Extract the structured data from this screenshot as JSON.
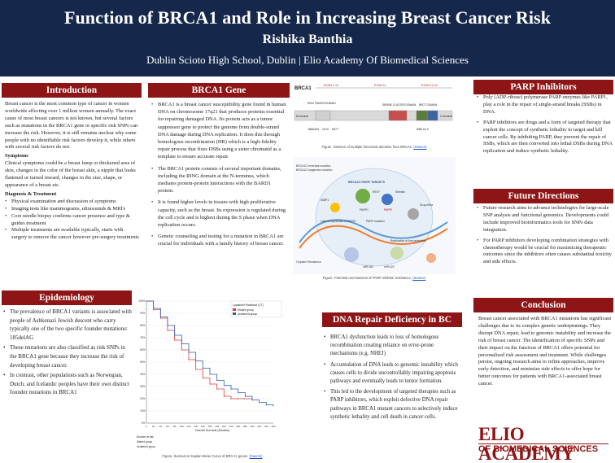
{
  "header": {
    "title": "Function of BRCA1 and Role in Increasing Breast Cancer Risk",
    "author": "Rishika Banthia",
    "affiliation": "Dublin Scioto High School, Dublin  |  Elio Academy Of Biomedical Sciences"
  },
  "colors": {
    "header_bg": "#15284c",
    "section_bg": "#8e1515",
    "text": "#222222"
  },
  "introduction": {
    "heading": "Introduction",
    "body": "Breast cancer is the most common type of cancer in women worldwide affecting over 1 million women annually. The exact cause of most breast cancers is not known, but several factors such as mutations in the BRCA1 gene or specific risk SNPs can increase the risk. However, it is still remains unclear why some people with no identifiable risk factors develop it, while others with several risk factors do not.",
    "symptoms_heading": "Symptoms",
    "symptoms": "Clinical symptoms could be a breast lump or thickened area of skin, changes in the color of the breast skin, a nipple that looks flattened or turned inward, changes in the size, shape, or appearance of a breast etc.",
    "diagnosis_heading": "Diagnosis & Treatment",
    "diagnosis": [
      "Physical examination and discussion of symptoms",
      "Imaging tests like mammograms, ultrasounds & MRI's",
      "Core needle biopsy confirms cancer presence and type & guides treatment",
      "Multiple treatments are available typically, starts with surgery to remove the cancer however pre-surgery treatments"
    ]
  },
  "brca1_gene": {
    "heading": "BRCA1 Gene",
    "bullets": [
      "BRCA1 is a breast cancer susceptibility gene found in human DNA on chromosome 17q21 that produces proteins essential for repairing damaged DNA. Its protein acts as a tumor suppressor gene to protect the genome from double-strand DNA damage during DNA replication. It does this through homologous recombination (HR) which is a high-fidelity repair process that fixes DSBs using a sister chromatid as a template to ensure accurate repair.",
      "The BRCA1 protein consists of several important domains, including the RING domain at the N-terminus, which mediates protein-protein interactions with the BARD1 protein.",
      "It is found higher levels in tissues with high proliferative capacity, such as the breast. Its expression is regulated during the cell cycle and is highest during the S phase when DNA replication occurs.",
      "Genetic counseling and testing for a mutation in BRCA1 are crucial for individuals with a family history of breast cancer."
    ]
  },
  "figure_domains": {
    "title": "BRCA1",
    "exons": [
      "EXON 1-10",
      "EXON 11",
      "EXON 12-24"
    ],
    "domains": [
      "RING FINGER DOMAIN",
      "SERINE CLUSTER DOMAIN",
      "BRCT DOMAIN"
    ],
    "terminal_left": "N-terminal",
    "terminal_right": "C-terminal",
    "markers": [
      "185delAG",
      "C61G",
      "D67Y",
      "5382 ins C"
    ],
    "caption": "Figure. Deletion of multiple functional domains from BRCA1.",
    "caption_link": "(Source)"
  },
  "figure_parp": {
    "caption": "Figure. Potential mechanisms of PARP inhibitor resistance.",
    "caption_link": "(Source)",
    "labels": [
      "BRCA1/2 revertant mutation",
      "BRCA1/2 epigenetic mutation",
      "BRCA1/2 PARPi TARGETS",
      "53BP1",
      "REV7",
      "Shieldin",
      "PARP1",
      "PARPi",
      "Loss of expression of PARP1",
      "PARP mutation",
      "Drug efflux",
      "Restoration of fork protection",
      "Cisplatin Resistance",
      "miR-182",
      "miR-622"
    ]
  },
  "epidemiology": {
    "heading": "Epidemiology",
    "bullets": [
      "The prevalence of BRCA1 variants is associated with people of Ashkenazi Jewish descent who carry typically one of the two specific founder mutations: 185delAG",
      "These mutations are also classified as risk SNPs in the BRCA1 gene because they increase the risk of developing breast cancer.",
      "In contrast, other populations such as Norwegian, Dutch, and Icelandic peoples have their own distinct founder mutations in BRCA1"
    ]
  },
  "km_figure": {
    "caption": "Figure. Survival or Kaplan-Meier Curve of BRCA1 genes.",
    "caption_link": "(Source)",
    "legend_title": "Lapatinib+Paclitaxel (CT)",
    "legend": [
      "Mutant group",
      "Unaltered group"
    ],
    "xlabel": "Overall Survival (Months)",
    "row_labels": [
      "Number at risk",
      "Altered group",
      "Unaltered group"
    ]
  },
  "chart_data": {
    "type": "line",
    "xlabel": "Overall Survival (Months)",
    "ylim": [
      0,
      100
    ],
    "xlim": [
      0,
      360
    ],
    "y_ticks": [
      0,
      10,
      20,
      30,
      40,
      50,
      60,
      70,
      80,
      90,
      100
    ],
    "y_tick_labels": [
      "0%",
      "10%",
      "20%",
      "30%",
      "40%",
      "50%",
      "60%",
      "70%",
      "80%",
      "90%",
      "100%"
    ],
    "x_ticks": [
      0,
      20,
      40,
      60,
      80,
      100,
      120,
      140,
      160,
      180,
      200,
      220,
      240,
      260,
      280,
      300,
      320,
      340,
      360
    ],
    "series": [
      {
        "name": "Mutant group",
        "color": "#e03b3b",
        "x": [
          0,
          20,
          40,
          60,
          80,
          100,
          120,
          140,
          160,
          180,
          200,
          220,
          240,
          260,
          300
        ],
        "y": [
          100,
          93,
          86,
          76,
          68,
          60,
          52,
          44,
          37,
          32,
          28,
          22,
          20,
          20,
          20
        ]
      },
      {
        "name": "Unaltered group",
        "color": "#2d5fb3",
        "x": [
          0,
          20,
          40,
          60,
          80,
          100,
          120,
          140,
          160,
          180,
          200,
          220,
          240,
          260,
          280,
          300,
          320,
          340,
          360
        ],
        "y": [
          100,
          94,
          87,
          80,
          72,
          65,
          58,
          51,
          45,
          40,
          35,
          31,
          28,
          25,
          22,
          19,
          17,
          15,
          14
        ]
      }
    ]
  },
  "dna_repair": {
    "heading": "DNA Repair Deficiency in BC",
    "bullets": [
      "BRCA1 dysfunction leads to loss of homologous recombination creating reliance on error-prone mechanisms (e.g. NHEJ)",
      "Accumulation of DNA leads to genomic instability which causes cells to divide uncontrollably impairing apoptosis pathways and eventually leads to tumor formation.",
      "This led to the development of targeted therapies such as PARP inhibitors, which exploit defective DNA repair pathways in BRCA1 mutant cancers to selectively induce synthetic lethality and cell death in cancer cells."
    ]
  },
  "parp": {
    "heading": "PARP Inhibitors",
    "bullets": [
      "Poly (ADP-ribose) polymerase PARP enzymes like PARP1, play a role in the repair of single-strand breaks (SSBs) in DNA.",
      "PARP inhibitors are drugs and a form of targeted therapy that exploit the concept of synthetic lethality to target and kill cancer cells. By inhibiting PARP, they prevent the repair of SSBs, which are then converted into lethal DSBs during DNA replication and induce synthetic lethality."
    ]
  },
  "future": {
    "heading": "Future Directions",
    "bullets": [
      "Future research aims to advance technologies for large-scale SNP analysis and functional genomics. Developments could include improved bioinformatics tools for SNPs data integration.",
      "For PARP inhibitors developing combination strategies with chemotherapy would be crucial for maximizing therapeutic outcomes since the inhibitors often causes substantial toxicity and side effects."
    ]
  },
  "conclusion": {
    "heading": "Conclusion",
    "body": "Breast cancer associated with BRCA1 mutations has significant challenges due to its complex genetic underpinnings. They disrupt DNA repair, lead to genomic instability and increase the risk of breast cancer. The identification of specific SNPs and their impact on the function of BRCA1 offers potential for personalized risk assessment and treatment. While challenges persist, ongoing research aims to refine approaches, improve early detection, and minimize side effects to offer hope for better outcomes for patients with BRCA1-associated breast cancer."
  },
  "logo": {
    "line1": "ELIO ACADEMY",
    "line2": "OF BIOMEDICAL SCIENCES"
  }
}
